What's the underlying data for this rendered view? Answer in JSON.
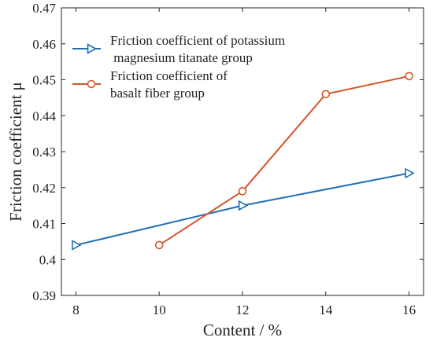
{
  "chart_data": {
    "type": "line",
    "xlabel": "Content / %",
    "ylabel": "Friction coefficient μ",
    "xlim": [
      8,
      16
    ],
    "ylim": [
      0.39,
      0.47
    ],
    "xticks": [
      "8",
      "10",
      "12",
      "14",
      "16"
    ],
    "yticks": [
      "0.39",
      "0.4",
      "0.41",
      "0.42",
      "0.43",
      "0.44",
      "0.45",
      "0.46",
      "0.47"
    ],
    "grid": false,
    "legend_position": "top-left",
    "series": [
      {
        "name": "Friction coefficient of potassium\n magnesium titanate group",
        "marker": "triangle-right",
        "color": "#1f6fb5",
        "x": [
          8,
          12,
          16
        ],
        "y": [
          0.404,
          0.415,
          0.424
        ]
      },
      {
        "name": "Friction coefficient of\nbasalt fiber group",
        "marker": "circle",
        "color": "#d2572a",
        "x": [
          10,
          12,
          14,
          16
        ],
        "y": [
          0.404,
          0.419,
          0.446,
          0.451
        ]
      }
    ]
  }
}
